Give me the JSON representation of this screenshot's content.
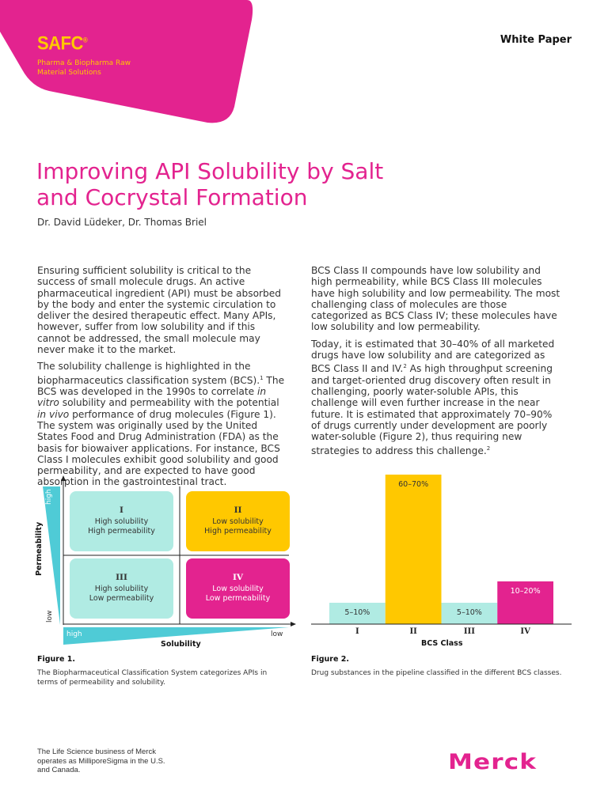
{
  "header": {
    "brand": "SAFC",
    "brand_mark": "®",
    "tagline": "Pharma & Biopharma Raw Material Solutions",
    "doc_type": "White Paper",
    "accent_color": "#e3238f",
    "brand_text_color": "#ffc800"
  },
  "article": {
    "title": "Improving API Solubility by Salt and Cocrystal Formation",
    "authors": "Dr. David Lüdeker, Dr. Thomas Briel",
    "left_col": {
      "p1": "Ensuring sufficient solubility is critical to the success of small molecule drugs. An active pharmaceutical ingredient (API) must be absorbed by the body and enter the systemic circulation to deliver the desired therapeutic effect. Many APIs, however, suffer from low solubility and if this cannot be addressed, the small molecule may never make it to the market.",
      "p2a": "The solubility challenge is highlighted in the biopharmaceutics classification system (BCS).",
      "p2_ref": "1",
      "p2b": " The BCS was developed in the 1990s to correlate ",
      "p2_it1": "in vitro",
      "p2c": " solubility and permeability with the potential ",
      "p2_it2": "in vivo",
      "p2d": " performance of drug molecules (Figure 1). The system was originally used by the United States Food and Drug Administration (FDA) as the basis for biowaiver applications. For instance, BCS Class I molecules exhibit good solubility and good permeability, and are expected to have good absorption in the gastrointestinal tract."
    },
    "right_col": {
      "p1": "BCS Class II compounds have low solubility and high permeability, while BCS Class III molecules have high solubility and low permeability. The most challenging class of molecules are those categorized as BCS Class IV; these molecules have low solubility and low permeability.",
      "p2a": "Today, it is estimated that 30–40% of all marketed drugs have low solubility and are categorized as BCS Class II and IV.",
      "p2_ref": "2",
      "p2b": " As high throughput screening and target-oriented drug discovery often result in challenging, poorly water-soluble APIs, this challenge will even further increase in the near future. It is estimated that approximately 70–90% of drugs currently under development are poorly water-soluble (Figure 2), thus requiring new strategies to address this challenge.",
      "p2_ref2": "2"
    }
  },
  "figure1": {
    "y_axis_label": "Permeability",
    "y_high": "high",
    "y_low": "low",
    "x_axis_label": "Solubility",
    "x_high": "high",
    "x_low": "low",
    "quadrants": [
      {
        "class": "I",
        "line1": "High solubility",
        "line2": "High permeability",
        "color": "#b0ebe3"
      },
      {
        "class": "II",
        "line1": "Low solubility",
        "line2": "High permeability",
        "color": "#ffc800"
      },
      {
        "class": "III",
        "line1": "High solubility",
        "line2": "Low permeability",
        "color": "#b0ebe3"
      },
      {
        "class": "IV",
        "line1": "Low solubility",
        "line2": "Low permeability",
        "color": "#e3238f"
      }
    ],
    "axis_wedge_color": "#4fcbd6",
    "caption_title": "Figure 1.",
    "caption": "The Biopharmaceutical Classification System categorizes APIs in terms of permeability and solubility."
  },
  "chart_data": {
    "type": "bar",
    "xlabel": "BCS Class",
    "categories": [
      "I",
      "II",
      "III",
      "IV"
    ],
    "ranges": [
      [
        5,
        10
      ],
      [
        60,
        70
      ],
      [
        5,
        10
      ],
      [
        10,
        20
      ]
    ],
    "data_labels": [
      "5–10%",
      "60–70%",
      "5–10%",
      "10–20%"
    ],
    "colors": [
      "#b0ebe3",
      "#ffc800",
      "#b0ebe3",
      "#e3238f"
    ],
    "label_colors": [
      "#333333",
      "#333333",
      "#333333",
      "#ffffff"
    ],
    "grid": false,
    "caption_title": "Figure 2.",
    "caption": "Drug substances in the pipeline classified in the different BCS classes."
  },
  "footer": {
    "note": "The Life Science business of Merck operates as MilliporeSigma in the U.S. and Canada.",
    "logo": "MERCK"
  }
}
